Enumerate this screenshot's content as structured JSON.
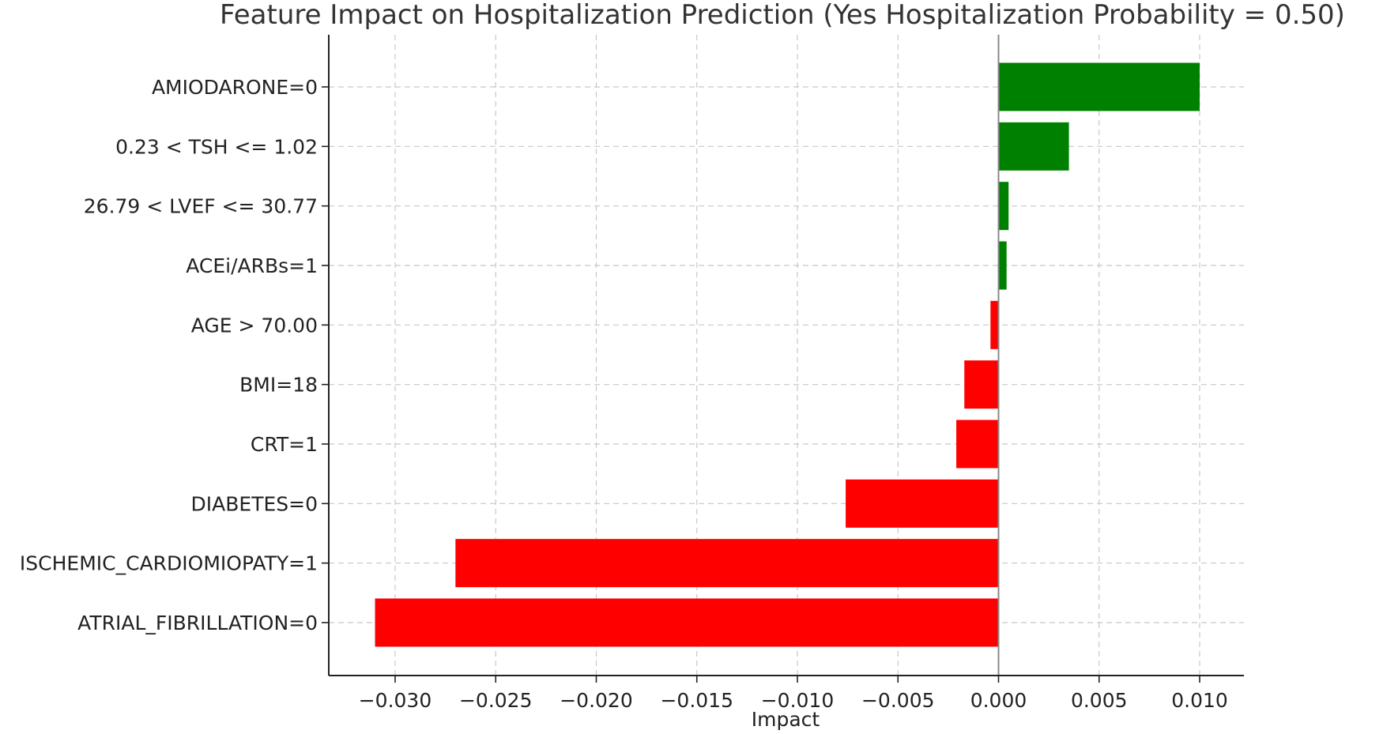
{
  "chart_data": {
    "type": "bar",
    "orientation": "horizontal",
    "title": "Feature Impact on Hospitalization Prediction (Yes Hospitalization Probability = 0.50)",
    "xlabel": "Impact",
    "ylabel": "",
    "xlim": [
      -0.0333,
      0.0122
    ],
    "xticks": [
      -0.03,
      -0.025,
      -0.02,
      -0.015,
      -0.01,
      -0.005,
      0.0,
      0.005,
      0.01
    ],
    "xtick_labels": [
      "−0.030",
      "−0.025",
      "−0.020",
      "−0.015",
      "−0.010",
      "−0.005",
      "0.000",
      "0.005",
      "0.010"
    ],
    "grid": true,
    "zero_line": true,
    "colors": {
      "positive": "#008000",
      "negative": "#ff0000"
    },
    "categories": [
      "AMIODARONE=0",
      "0.23 < TSH <= 1.02",
      "26.79 < LVEF <= 30.77",
      "ACEi/ARBs=1",
      "AGE > 70.00",
      "BMI=18",
      "CRT=1",
      "DIABETES=0",
      "ISCHEMIC_CARDIOMIOPATY=1",
      "ATRIAL_FIBRILLATION=0"
    ],
    "values": [
      0.01,
      0.0035,
      0.0005,
      0.0004,
      -0.0004,
      -0.0017,
      -0.0021,
      -0.0076,
      -0.027,
      -0.031
    ]
  }
}
